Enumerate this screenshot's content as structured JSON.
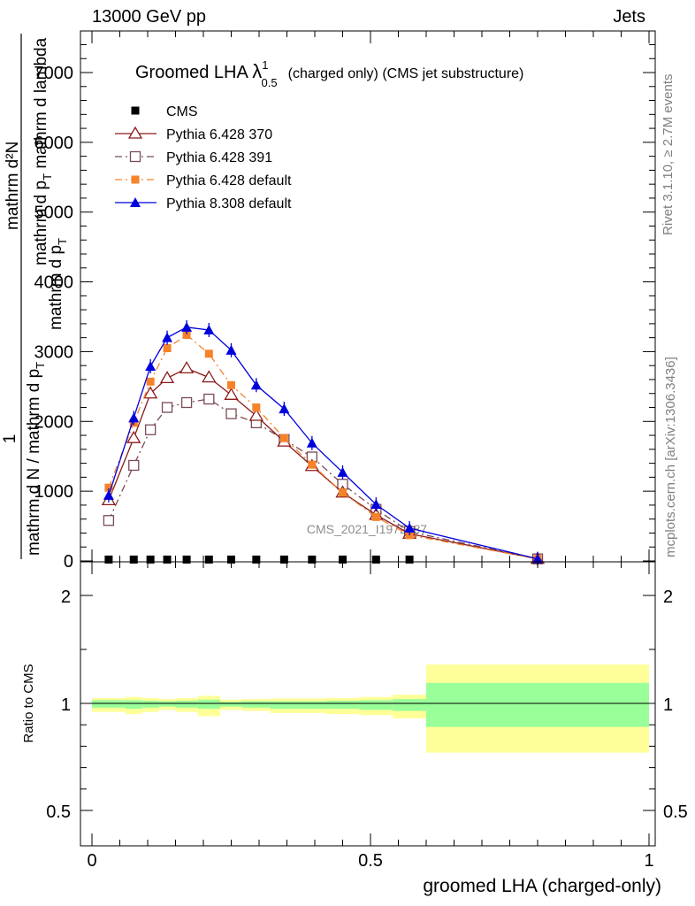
{
  "header": {
    "left": "13000 GeV pp",
    "right": "Jets"
  },
  "side": {
    "rivet": "Rivet 3.1.10, ≥ 2.7M events",
    "mcplots": "mcplots.cern.ch [arXiv:1306.3436]"
  },
  "chart_data": [
    {
      "type": "line",
      "title": "Groomed LHA λ¹₀.₅ (charged only) (CMS jet substructure)",
      "title_main": "Groomed LHA",
      "title_lambda": "λ",
      "title_sup": "1",
      "title_sub": "0.5",
      "title_rest": "(charged only) (CMS jet substructure)",
      "ylabel_numerator": "mathrm d²N",
      "ylabel_num_frac": "mathrm d p",
      "ylabel_num_frac_sub": "T",
      "ylabel_num_frac_end": "mathrm d lambda",
      "ylabel_one": "1",
      "ylabel_den": "mathrm d N / mathrm d p",
      "ylabel_den_sub": "T",
      "ylabel_tail": "mathrm d p",
      "ylabel_tail_sub": "T",
      "watermark": "CMS_2021_I1972987",
      "ylim": [
        0,
        7500
      ],
      "xlim": [
        -0.02,
        1.0
      ],
      "yticks": [
        0,
        1000,
        2000,
        3000,
        4000,
        5000,
        6000,
        7000
      ],
      "ytick_labels": [
        "0",
        "1000",
        "2000",
        "3000",
        "4000",
        "5000",
        "6000",
        "7000"
      ],
      "legend_position": "top-left",
      "series": [
        {
          "name": "CMS",
          "color": "#000000",
          "marker": "square-filled",
          "x": [
            0.03,
            0.075,
            0.105,
            0.135,
            0.17,
            0.21,
            0.25,
            0.295,
            0.345,
            0.395,
            0.45,
            0.51,
            0.57
          ],
          "y": [
            20,
            20,
            20,
            20,
            20,
            20,
            20,
            20,
            20,
            20,
            20,
            20,
            20
          ]
        },
        {
          "name": "Pythia 6.428 370",
          "color": "#8b1a1a",
          "marker": "triangle-open",
          "dash": "",
          "x": [
            0.03,
            0.075,
            0.105,
            0.135,
            0.17,
            0.21,
            0.25,
            0.295,
            0.345,
            0.395,
            0.45,
            0.51,
            0.57,
            0.8
          ],
          "y": [
            870,
            1760,
            2400,
            2620,
            2760,
            2630,
            2380,
            2080,
            1710,
            1360,
            980,
            660,
            390,
            30
          ]
        },
        {
          "name": "Pythia 6.428 391",
          "color": "#7a4a55",
          "marker": "square-open",
          "dash": "8,4,2,4",
          "x": [
            0.03,
            0.075,
            0.105,
            0.135,
            0.17,
            0.21,
            0.25,
            0.295,
            0.345,
            0.395,
            0.45,
            0.51,
            0.57,
            0.8
          ],
          "y": [
            580,
            1370,
            1880,
            2200,
            2270,
            2320,
            2110,
            1980,
            1740,
            1490,
            1100,
            740,
            420,
            30
          ]
        },
        {
          "name": "Pythia 6.428 default",
          "color": "#f5832a",
          "marker": "square-filled",
          "dash": "8,4,2,4",
          "x": [
            0.03,
            0.075,
            0.105,
            0.135,
            0.17,
            0.21,
            0.25,
            0.295,
            0.345,
            0.395,
            0.45,
            0.51,
            0.57,
            0.8
          ],
          "y": [
            1050,
            1980,
            2570,
            3050,
            3240,
            2970,
            2520,
            2200,
            1760,
            1380,
            980,
            630,
            370,
            30
          ]
        },
        {
          "name": "Pythia 8.308 default",
          "color": "#0000dd",
          "marker": "triangle-filled",
          "dash": "",
          "x": [
            0.03,
            0.075,
            0.105,
            0.135,
            0.17,
            0.21,
            0.25,
            0.295,
            0.345,
            0.395,
            0.45,
            0.51,
            0.57,
            0.8
          ],
          "y": [
            940,
            2050,
            2790,
            3200,
            3350,
            3310,
            3020,
            2520,
            2180,
            1690,
            1270,
            810,
            470,
            30
          ]
        }
      ]
    },
    {
      "type": "line",
      "ylabel": "Ratio to CMS",
      "xlabel": "groomed LHA (charged-only)",
      "ylim": [
        0.4,
        2.4
      ],
      "xlim": [
        -0.02,
        1.0
      ],
      "yticks": [
        0.5,
        1,
        2
      ],
      "ytick_labels": [
        "0.5",
        "1",
        "2"
      ],
      "xticks": [
        0,
        0.5,
        1
      ],
      "xtick_labels": [
        "0",
        "0.5",
        "1"
      ],
      "reference_line": 1,
      "uncertainty_bands": {
        "inner_color": "#99ff99",
        "outer_color": "#ffff99",
        "bins": [
          {
            "x0": 0.0,
            "x1": 0.06,
            "inner": [
              0.98,
              1.03
            ],
            "outer": [
              0.96,
              1.05
            ]
          },
          {
            "x0": 0.06,
            "x1": 0.09,
            "inner": [
              0.975,
              1.03
            ],
            "outer": [
              0.95,
              1.06
            ]
          },
          {
            "x0": 0.09,
            "x1": 0.12,
            "inner": [
              0.98,
              1.025
            ],
            "outer": [
              0.96,
              1.05
            ]
          },
          {
            "x0": 0.12,
            "x1": 0.15,
            "inner": [
              0.985,
              1.02
            ],
            "outer": [
              0.97,
              1.04
            ]
          },
          {
            "x0": 0.15,
            "x1": 0.19,
            "inner": [
              0.98,
              1.025
            ],
            "outer": [
              0.96,
              1.05
            ]
          },
          {
            "x0": 0.19,
            "x1": 0.23,
            "inner": [
              0.975,
              1.035
            ],
            "outer": [
              0.94,
              1.07
            ]
          },
          {
            "x0": 0.23,
            "x1": 0.27,
            "inner": [
              0.985,
              1.015
            ],
            "outer": [
              0.97,
              1.035
            ]
          },
          {
            "x0": 0.27,
            "x1": 0.32,
            "inner": [
              0.98,
              1.02
            ],
            "outer": [
              0.965,
              1.04
            ]
          },
          {
            "x0": 0.32,
            "x1": 0.37,
            "inner": [
              0.975,
              1.02
            ],
            "outer": [
              0.955,
              1.045
            ]
          },
          {
            "x0": 0.37,
            "x1": 0.42,
            "inner": [
              0.975,
              1.02
            ],
            "outer": [
              0.955,
              1.045
            ]
          },
          {
            "x0": 0.42,
            "x1": 0.48,
            "inner": [
              0.975,
              1.025
            ],
            "outer": [
              0.95,
              1.05
            ]
          },
          {
            "x0": 0.48,
            "x1": 0.54,
            "inner": [
              0.97,
              1.03
            ],
            "outer": [
              0.945,
              1.06
            ]
          },
          {
            "x0": 0.54,
            "x1": 0.6,
            "inner": [
              0.965,
              1.04
            ],
            "outer": [
              0.93,
              1.08
            ]
          },
          {
            "x0": 0.6,
            "x1": 1.0,
            "inner": [
              0.89,
              1.19
            ],
            "outer": [
              0.77,
              1.36
            ]
          }
        ]
      }
    }
  ]
}
